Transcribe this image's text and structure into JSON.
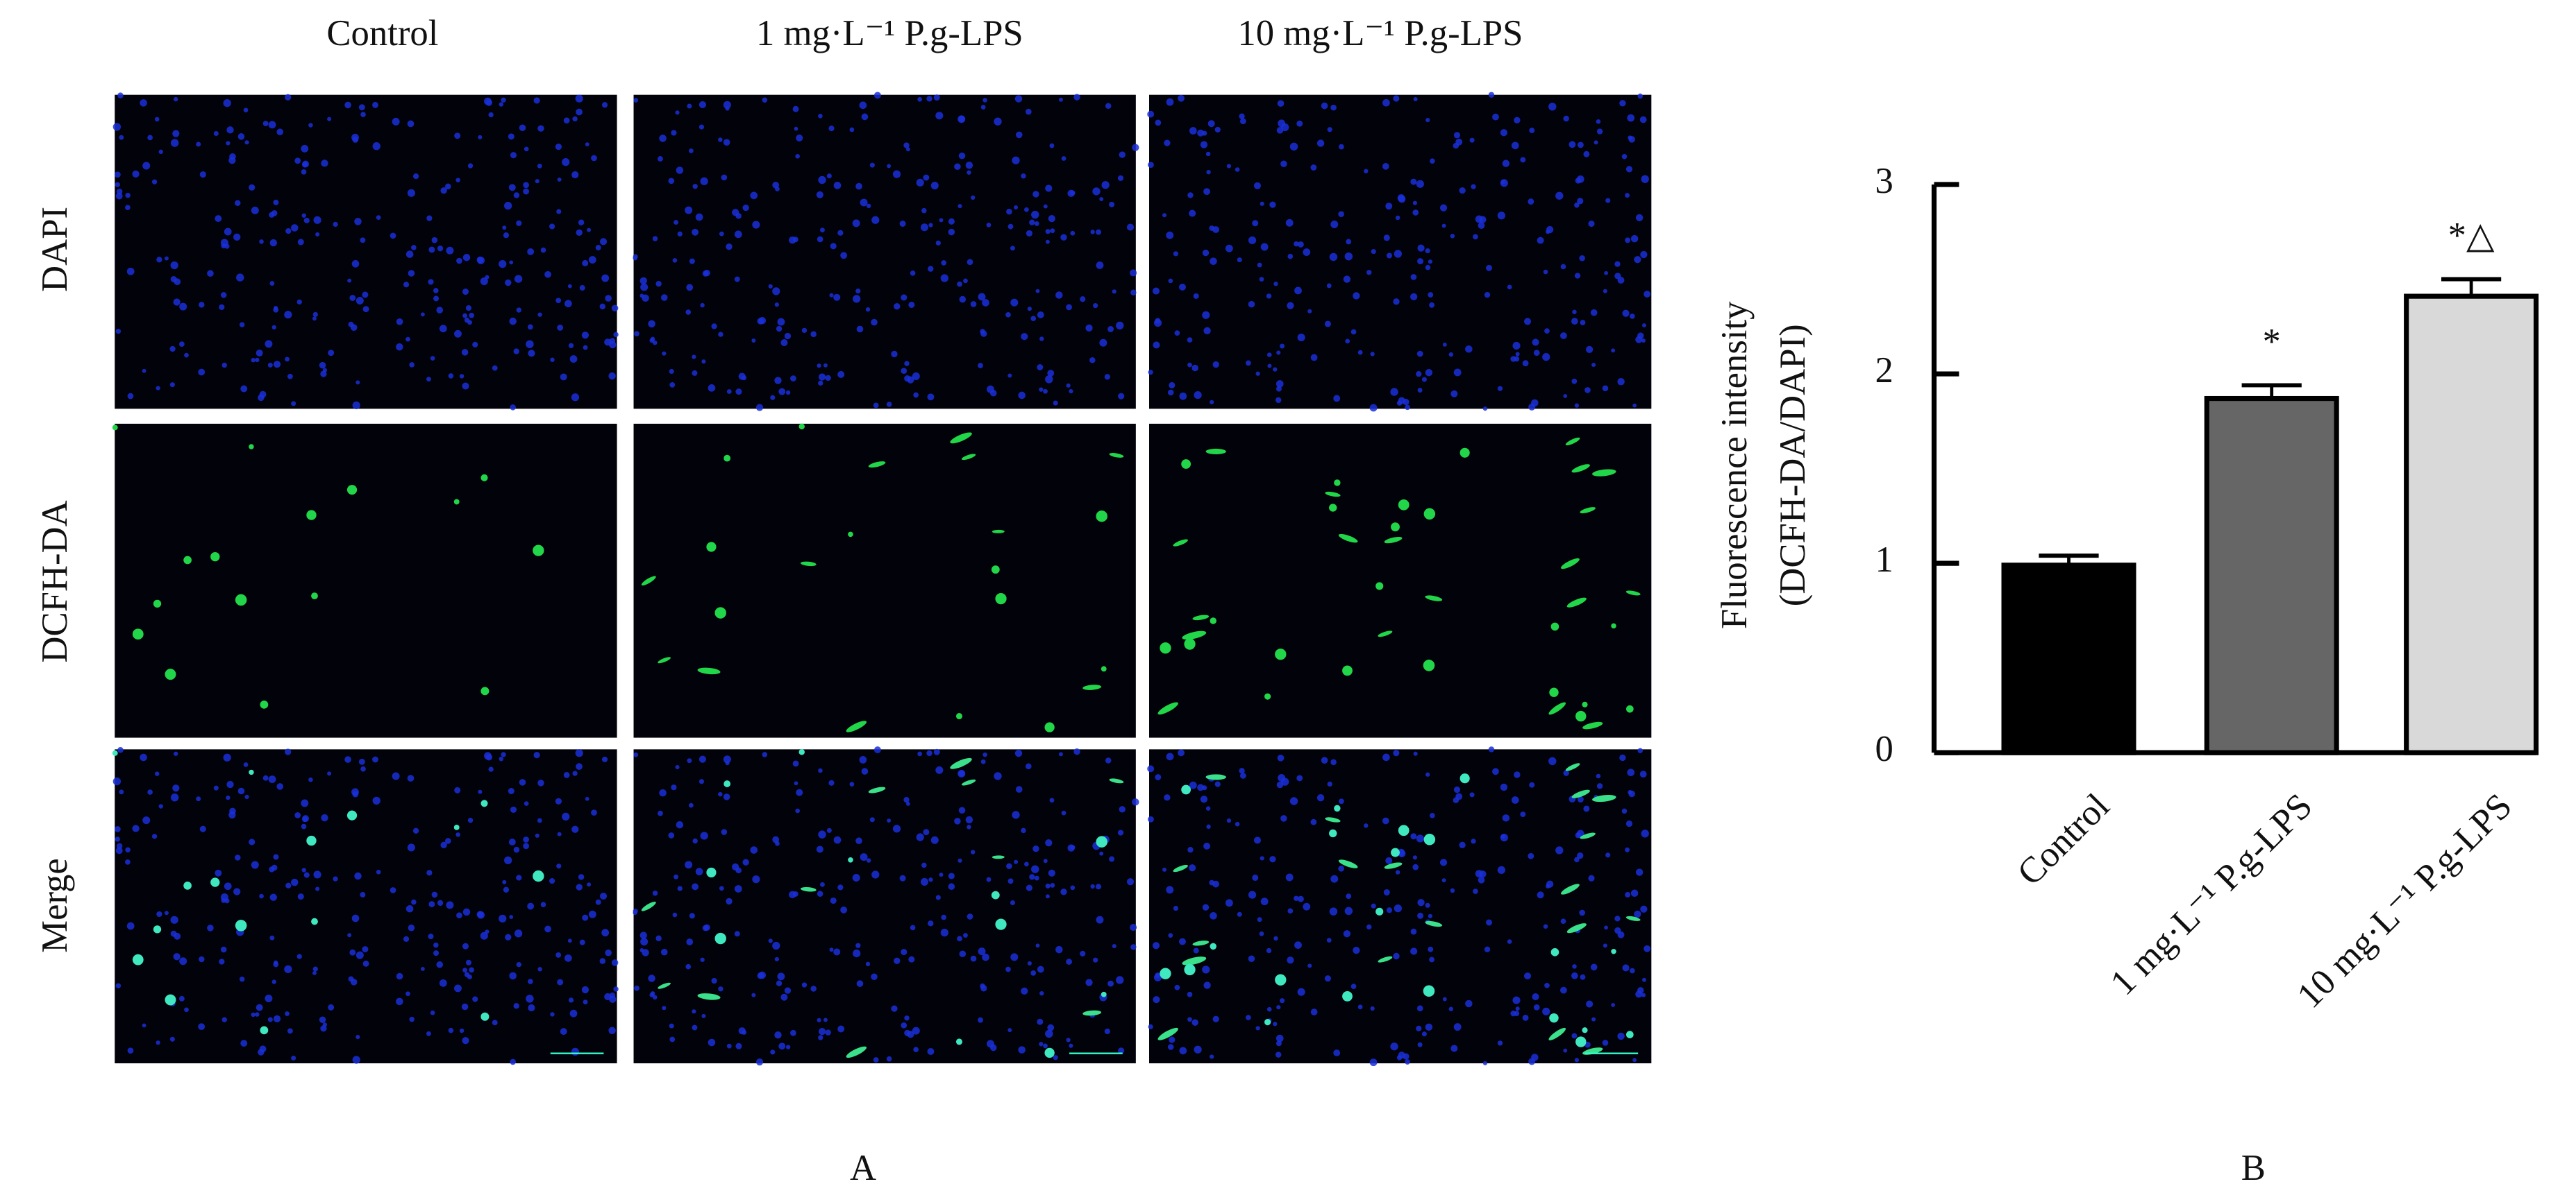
{
  "panel_a": {
    "label": "A",
    "column_labels": [
      "Control",
      "1 mg·L⁻¹ P.g-LPS",
      "10 mg·L⁻¹ P.g-LPS"
    ],
    "row_labels": [
      "DAPI",
      "DCFH-DA",
      "Merge"
    ]
  },
  "chart_data": {
    "type": "bar",
    "panel_label": "B",
    "ylabel": [
      "Fluorescence intensity",
      "(DCFH-DA/DAPI)"
    ],
    "categories": [
      "Control",
      "1 mg·L⁻¹ P.g-LPS",
      "10 mg·L⁻¹ P.g-LPS"
    ],
    "values": [
      0.99,
      1.87,
      2.41
    ],
    "errors": [
      0.05,
      0.07,
      0.09
    ],
    "annotations": [
      null,
      "*",
      "*△"
    ],
    "colors": [
      "#000000",
      "#666666",
      "#d9d9d9"
    ],
    "ylim": [
      0,
      3
    ],
    "yticks": [
      0,
      1,
      2,
      3
    ]
  }
}
